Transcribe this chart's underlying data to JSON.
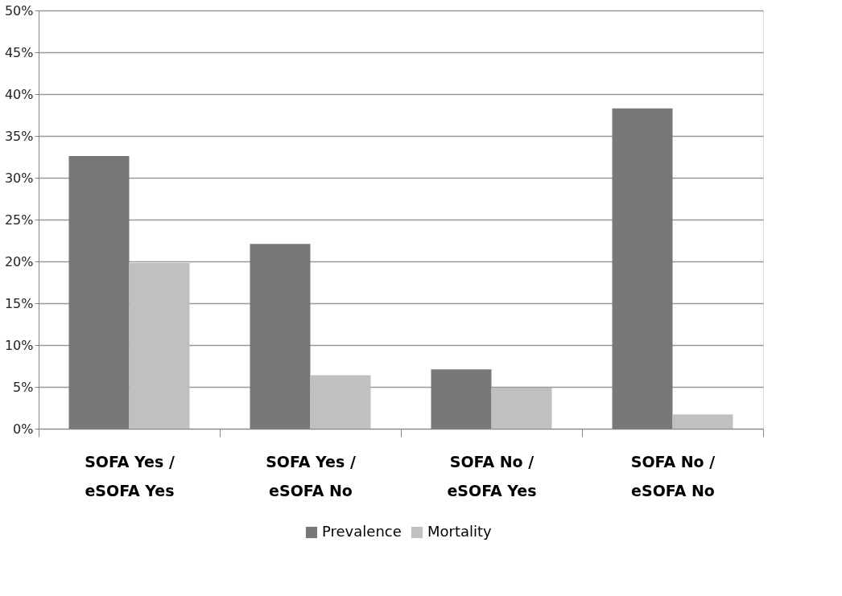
{
  "chart_data": {
    "type": "bar",
    "categories": [
      "SOFA Yes / eSOFA Yes",
      "SOFA Yes / eSOFA No",
      "SOFA No / eSOFA Yes",
      "SOFA No / eSOFA No"
    ],
    "series": [
      {
        "name": "Prevalence",
        "color": "#787878",
        "values": [
          32.6,
          22.1,
          7.1,
          38.3
        ]
      },
      {
        "name": "Mortality",
        "color": "#c0c0c0",
        "values": [
          19.8,
          6.4,
          4.9,
          1.7
        ]
      }
    ],
    "ylim": [
      0,
      50
    ],
    "yticks": [
      {
        "value": 0,
        "label": "0%"
      },
      {
        "value": 5,
        "label": "5%"
      },
      {
        "value": 10,
        "label": "10%"
      },
      {
        "value": 15,
        "label": "15%"
      },
      {
        "value": 20,
        "label": "20%"
      },
      {
        "value": 25,
        "label": "25%"
      },
      {
        "value": 30,
        "label": "30%"
      },
      {
        "value": 35,
        "label": "35%"
      },
      {
        "value": 40,
        "label": "40%"
      },
      {
        "value": 45,
        "label": "45%"
      },
      {
        "value": 50,
        "label": "50%"
      }
    ],
    "grid": "y",
    "legend": "bottom"
  }
}
